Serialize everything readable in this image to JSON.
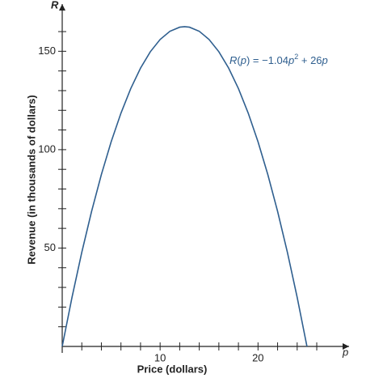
{
  "chart_data": {
    "type": "line",
    "x_label": "Price (dollars)",
    "y_label": "Revenue (in thousands of dollars)",
    "x_axis_letter": "p",
    "y_axis_letter": "R",
    "annotation_parts": [
      "R",
      "(",
      "p",
      ") = −1.04",
      "p",
      "2",
      " + 26",
      "p"
    ],
    "x": [
      0,
      1,
      2,
      3,
      4,
      5,
      6,
      7,
      8,
      9,
      10,
      11,
      12,
      12.5,
      13,
      14,
      15,
      16,
      17,
      18,
      19,
      20,
      21,
      22,
      23,
      24,
      25
    ],
    "series": [
      {
        "color": "#2f5f8f",
        "values": [
          0,
          24.96,
          47.84,
          68.64,
          87.36,
          104,
          118.56,
          131.04,
          141.44,
          149.76,
          156,
          160.16,
          162.24,
          162.5,
          162.24,
          160.16,
          156,
          149.76,
          141.44,
          131.04,
          118.56,
          104,
          87.36,
          68.64,
          47.84,
          24.96,
          0
        ]
      }
    ],
    "xlim": [
      0,
      29.3
    ],
    "ylim": [
      0,
      174
    ],
    "xticks": [
      10,
      20
    ],
    "yticks": [
      50,
      100,
      150
    ],
    "xminor_ticks": [
      2,
      4,
      6,
      8,
      12,
      14,
      16,
      18,
      22,
      24,
      26
    ],
    "yminor_ticks": [
      10,
      20,
      30,
      40,
      60,
      70,
      80,
      90,
      110,
      120,
      130,
      140,
      160
    ],
    "grid": false
  }
}
